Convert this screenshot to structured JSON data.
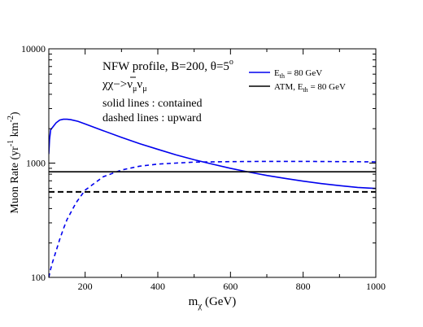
{
  "chart_data": {
    "type": "line",
    "title": "",
    "xlabel_main": "m",
    "xlabel_sub": "χ",
    "xlabel_unit": " (GeV)",
    "ylabel_main": "Muon Rate (yr",
    "ylabel_sup1": "-1",
    "ylabel_mid": " km",
    "ylabel_sup2": "-2",
    "ylabel_end": ")",
    "xlim": [
      100,
      1000
    ],
    "ylim": [
      100,
      10000
    ],
    "yscale": "log",
    "grid": false,
    "x_ticks": [
      200,
      400,
      600,
      800,
      1000
    ],
    "x_tick_labels": [
      "200",
      "400",
      "600",
      "800",
      "1000"
    ],
    "y_ticks": [
      100,
      1000,
      10000
    ],
    "y_tick_labels": [
      "100",
      "1000",
      "10000"
    ],
    "annotations": {
      "line1_main": "NFW profile, B=200, θ=5",
      "line1_sup": "o",
      "line2_a": "χχ−>ν",
      "line2_sub1": "μ",
      "line2_b": "ν",
      "line2_sub2": "μ",
      "line3": "solid lines : contained",
      "line4": "dashed lines : upward"
    },
    "legend": {
      "placement": "top-right",
      "entries": [
        {
          "label_main": "E",
          "label_sub": "th",
          "label_rest": " = 80 GeV",
          "color": "#0000ee"
        },
        {
          "label_main": "ATM, E",
          "label_sub": "th",
          "label_rest": " = 80 GeV",
          "color": "#000000"
        }
      ]
    },
    "series": [
      {
        "color": "#0000ee",
        "style": "solid",
        "x": [
          100,
          102,
          105,
          110,
          120,
          130,
          140,
          150,
          160,
          180,
          200,
          250,
          300,
          350,
          400,
          450,
          500,
          550,
          600,
          650,
          700,
          750,
          800,
          850,
          900,
          950,
          1000
        ],
        "y": [
          1200,
          1600,
          1950,
          2050,
          2250,
          2380,
          2420,
          2420,
          2400,
          2320,
          2200,
          1920,
          1680,
          1480,
          1320,
          1180,
          1070,
          980,
          900,
          835,
          780,
          735,
          695,
          662,
          635,
          612,
          600
        ]
      },
      {
        "color": "#0000ee",
        "style": "dashed",
        "x": [
          100,
          105,
          110,
          120,
          130,
          140,
          150,
          175,
          200,
          250,
          300,
          350,
          400,
          450,
          500,
          600,
          700,
          800,
          900,
          1000
        ],
        "y": [
          100,
          118,
          135,
          170,
          215,
          265,
          320,
          450,
          580,
          760,
          870,
          940,
          980,
          1000,
          1020,
          1030,
          1035,
          1035,
          1030,
          1025
        ]
      },
      {
        "color": "#000000",
        "style": "solid",
        "x": [
          100,
          1000
        ],
        "y": [
          840,
          840
        ]
      },
      {
        "color": "#000000",
        "style": "dashed",
        "x": [
          100,
          1000
        ],
        "y": [
          560,
          560
        ]
      }
    ]
  }
}
